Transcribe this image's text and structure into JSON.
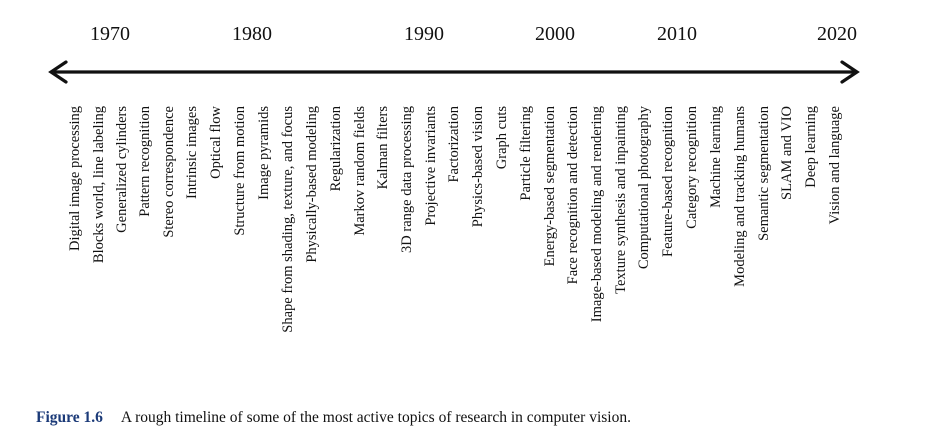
{
  "timeline": {
    "years": [
      "1970",
      "1980",
      "1990",
      "2000",
      "2010",
      "2020"
    ],
    "topics": [
      "Digital image processing",
      "Blocks world, line labeling",
      "Generalized cylinders",
      "Pattern recognition",
      "Stereo correspondence",
      "Intrinsic images",
      "Optical flow",
      "Structure from motion",
      "Image pyramids",
      "Shape from shading, texture, and focus",
      "Physically-based modeling",
      "Regularization",
      "Markov random fields",
      "Kalman filters",
      "3D range data processing",
      "Projective invariants",
      "Factorization",
      "Physics-based vision",
      "Graph cuts",
      "Particle filtering",
      "Energy-based segmentation",
      "Face recognition and detection",
      "Image-based modeling and rendering",
      "Texture synthesis and inpainting",
      "Computational photography",
      "Feature-based recognition",
      "Category recognition",
      "Machine learning",
      "Modeling and tracking humans",
      "Semantic segmentation",
      "SLAM and VIO",
      "Deep learning",
      "Vision and language"
    ]
  },
  "caption": {
    "label": "Figure 1.6",
    "text": "A rough timeline of some of the most active topics of research in computer vision."
  },
  "colors": {
    "caption_label": "#1b3a78",
    "text": "#111111"
  }
}
